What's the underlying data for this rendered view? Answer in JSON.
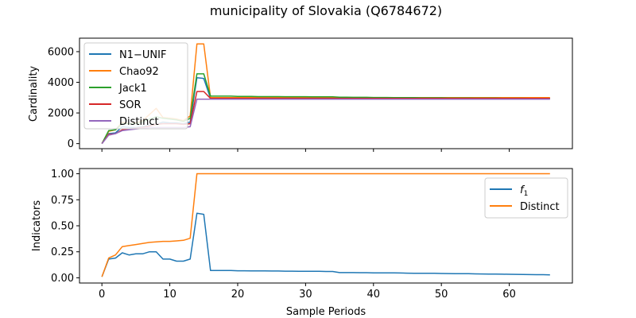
{
  "figure": {
    "title": "municipality of Slovakia (Q6784672)"
  },
  "chart_data": [
    {
      "type": "line",
      "ylabel": "Cardinality",
      "xlabel": "",
      "xlim": [
        -3.3,
        69.3
      ],
      "ylim": [
        -330,
        6880
      ],
      "x_ticks": [
        0,
        10,
        20,
        30,
        40,
        50,
        60
      ],
      "y_ticks": [
        0,
        2000,
        4000,
        6000
      ],
      "legend_position": "upper-left",
      "x": [
        0,
        1,
        2,
        3,
        4,
        5,
        6,
        7,
        8,
        9,
        10,
        11,
        12,
        13,
        14,
        15,
        16,
        17,
        18,
        19,
        20,
        21,
        22,
        23,
        24,
        25,
        26,
        27,
        28,
        29,
        30,
        31,
        32,
        33,
        34,
        35,
        36,
        37,
        38,
        39,
        40,
        41,
        42,
        43,
        44,
        45,
        46,
        47,
        48,
        49,
        50,
        51,
        52,
        53,
        54,
        55,
        56,
        57,
        58,
        59,
        60,
        61,
        62,
        63,
        64,
        65,
        66
      ],
      "series": [
        {
          "name": "N1−UNIF",
          "color": "#1f77b4",
          "values": [
            0,
            650,
            700,
            1100,
            1050,
            1050,
            1100,
            1200,
            1250,
            1400,
            1350,
            1350,
            1300,
            1400,
            4300,
            4250,
            2950,
            2950,
            2950,
            2950,
            2950,
            2950,
            2950,
            2950,
            2950,
            2950,
            2950,
            2950,
            2950,
            2950,
            2950,
            2950,
            2950,
            2950,
            2950,
            2950,
            2950,
            2950,
            2950,
            2950,
            2950,
            2950,
            2950,
            2950,
            2950,
            2950,
            2950,
            2950,
            2950,
            2950,
            2950,
            2950,
            2950,
            2950,
            2950,
            2950,
            2950,
            2950,
            2950,
            2950,
            2950,
            2950,
            2950,
            2950,
            2950,
            2950,
            2950
          ]
        },
        {
          "name": "Chao92",
          "color": "#ff7f0e",
          "values": [
            0,
            800,
            900,
            1400,
            1300,
            1350,
            1500,
            1900,
            2300,
            1700,
            1650,
            1600,
            1500,
            1800,
            6500,
            6500,
            3000,
            3000,
            3000,
            3000,
            3000,
            3000,
            3000,
            3000,
            3000,
            3000,
            3000,
            3000,
            3000,
            3000,
            3000,
            3000,
            3000,
            3000,
            3000,
            3000,
            3000,
            3000,
            3000,
            3000,
            3000,
            3000,
            3000,
            3000,
            3000,
            3000,
            3000,
            3000,
            3000,
            3000,
            3000,
            3000,
            3000,
            3000,
            3000,
            3000,
            3000,
            3000,
            3000,
            3000,
            3000,
            3000,
            3000,
            3000,
            3000,
            3000,
            3000
          ]
        },
        {
          "name": "Jack1",
          "color": "#2ca02c",
          "values": [
            0,
            850,
            900,
            1300,
            1300,
            1300,
            1400,
            1600,
            1750,
            1650,
            1600,
            1550,
            1450,
            1650,
            4550,
            4550,
            3100,
            3100,
            3100,
            3100,
            3080,
            3080,
            3080,
            3070,
            3070,
            3070,
            3070,
            3060,
            3060,
            3060,
            3060,
            3050,
            3050,
            3050,
            3050,
            3030,
            3030,
            3020,
            3020,
            3020,
            3010,
            3010,
            3010,
            3000,
            3000,
            3000,
            3000,
            2990,
            2990,
            2990,
            2990,
            2980,
            2980,
            2980,
            2980,
            2970,
            2970,
            2970,
            2970,
            2960,
            2960,
            2960,
            2960,
            2950,
            2950,
            2950,
            2950
          ]
        },
        {
          "name": "SOR",
          "color": "#d62728",
          "values": [
            0,
            600,
            650,
            900,
            950,
            1000,
            1050,
            1150,
            1250,
            1300,
            1300,
            1300,
            1250,
            1300,
            3400,
            3400,
            2950,
            2950,
            2950,
            2950,
            2950,
            2950,
            2950,
            2950,
            2950,
            2950,
            2950,
            2950,
            2950,
            2950,
            2950,
            2950,
            2950,
            2950,
            2950,
            2950,
            2950,
            2950,
            2950,
            2950,
            2950,
            2950,
            2950,
            2950,
            2950,
            2950,
            2950,
            2950,
            2950,
            2950,
            2950,
            2950,
            2950,
            2950,
            2950,
            2950,
            2950,
            2950,
            2950,
            2950,
            2950,
            2950,
            2950,
            2950,
            2950,
            2950,
            2950
          ]
        },
        {
          "name": "Distinct",
          "color": "#9467bd",
          "values": [
            0,
            550,
            650,
            850,
            900,
            950,
            1000,
            1050,
            1050,
            1050,
            1050,
            1050,
            1050,
            1100,
            2900,
            2900,
            2900,
            2900,
            2900,
            2900,
            2900,
            2900,
            2900,
            2900,
            2900,
            2900,
            2900,
            2900,
            2900,
            2900,
            2900,
            2900,
            2900,
            2900,
            2900,
            2900,
            2900,
            2900,
            2900,
            2900,
            2900,
            2900,
            2900,
            2900,
            2900,
            2900,
            2900,
            2900,
            2900,
            2900,
            2900,
            2900,
            2900,
            2900,
            2900,
            2900,
            2900,
            2900,
            2900,
            2900,
            2900,
            2900,
            2900,
            2900,
            2900,
            2900,
            2900
          ]
        }
      ]
    },
    {
      "type": "line",
      "ylabel": "Indicators",
      "xlabel": "Sample Periods",
      "xlim": [
        -3.3,
        69.3
      ],
      "ylim": [
        -0.05,
        1.05
      ],
      "x_ticks": [
        0,
        10,
        20,
        30,
        40,
        50,
        60
      ],
      "y_ticks": [
        0.0,
        0.25,
        0.5,
        0.75,
        1.0
      ],
      "y_tick_labels": [
        "0.00",
        "0.25",
        "0.50",
        "0.75",
        "1.00"
      ],
      "legend_position": "upper-right",
      "x": [
        0,
        1,
        2,
        3,
        4,
        5,
        6,
        7,
        8,
        9,
        10,
        11,
        12,
        13,
        14,
        15,
        16,
        17,
        18,
        19,
        20,
        21,
        22,
        23,
        24,
        25,
        26,
        27,
        28,
        29,
        30,
        31,
        32,
        33,
        34,
        35,
        36,
        37,
        38,
        39,
        40,
        41,
        42,
        43,
        44,
        45,
        46,
        47,
        48,
        49,
        50,
        51,
        52,
        53,
        54,
        55,
        56,
        57,
        58,
        59,
        60,
        61,
        62,
        63,
        64,
        65,
        66
      ],
      "series": [
        {
          "name": "f1",
          "color": "#1f77b4",
          "values": [
            0.01,
            0.18,
            0.19,
            0.24,
            0.22,
            0.23,
            0.23,
            0.25,
            0.25,
            0.18,
            0.18,
            0.16,
            0.16,
            0.18,
            0.62,
            0.61,
            0.07,
            0.07,
            0.07,
            0.07,
            0.068,
            0.068,
            0.067,
            0.066,
            0.066,
            0.065,
            0.065,
            0.064,
            0.064,
            0.063,
            0.063,
            0.062,
            0.062,
            0.061,
            0.061,
            0.05,
            0.05,
            0.05,
            0.049,
            0.049,
            0.048,
            0.048,
            0.047,
            0.047,
            0.046,
            0.045,
            0.044,
            0.044,
            0.043,
            0.043,
            0.042,
            0.041,
            0.04,
            0.04,
            0.039,
            0.038,
            0.037,
            0.036,
            0.036,
            0.035,
            0.034,
            0.033,
            0.032,
            0.031,
            0.03,
            0.03,
            0.029
          ]
        },
        {
          "name": "Distinct",
          "color": "#ff7f0e",
          "values": [
            0.01,
            0.19,
            0.22,
            0.3,
            0.31,
            0.32,
            0.33,
            0.34,
            0.345,
            0.35,
            0.35,
            0.355,
            0.36,
            0.38,
            1.0,
            1.0,
            1.0,
            1.0,
            1.0,
            1.0,
            1.0,
            1.0,
            1.0,
            1.0,
            1.0,
            1.0,
            1.0,
            1.0,
            1.0,
            1.0,
            1.0,
            1.0,
            1.0,
            1.0,
            1.0,
            1.0,
            1.0,
            1.0,
            1.0,
            1.0,
            1.0,
            1.0,
            1.0,
            1.0,
            1.0,
            1.0,
            1.0,
            1.0,
            1.0,
            1.0,
            1.0,
            1.0,
            1.0,
            1.0,
            1.0,
            1.0,
            1.0,
            1.0,
            1.0,
            1.0,
            1.0,
            1.0,
            1.0,
            1.0,
            1.0,
            1.0,
            1.0
          ]
        }
      ]
    }
  ]
}
